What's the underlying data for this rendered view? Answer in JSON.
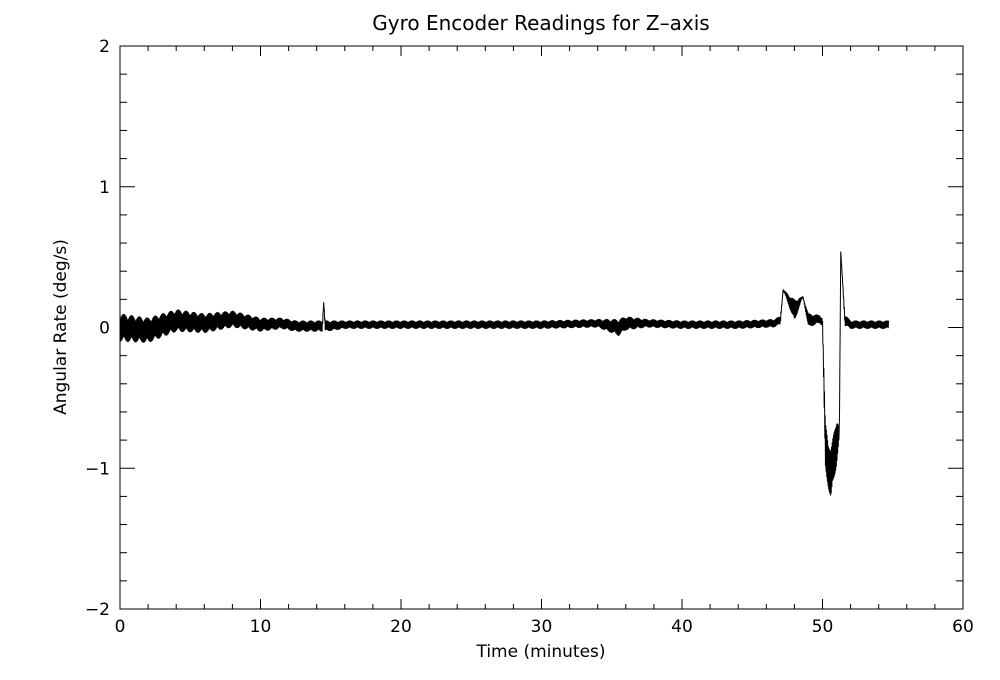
{
  "chart_data": {
    "type": "line",
    "title": "Gyro Encoder Readings for Z–axis",
    "xlabel": "Time (minutes)",
    "ylabel": "Angular Rate (deg/s)",
    "xlim": [
      0,
      60
    ],
    "ylim": [
      -2,
      2
    ],
    "xticks": [
      0,
      10,
      20,
      30,
      40,
      50,
      60
    ],
    "xtick_labels": [
      "0",
      "10",
      "20",
      "30",
      "40",
      "50",
      "60"
    ],
    "yticks": [
      -2,
      -1,
      0,
      1,
      2
    ],
    "ytick_labels": [
      "−2",
      "−1",
      "0",
      "1",
      "2"
    ],
    "grid": false,
    "line_color": "#000000",
    "series": [
      {
        "x": [
          0.0,
          2.0,
          4.0,
          6.0,
          8.0,
          10.0,
          11.5,
          12.5,
          14.4,
          14.5,
          14.6,
          16.0,
          20.0,
          25.0,
          30.0,
          34.0,
          35.5,
          36.0,
          37.5,
          40.0,
          44.0,
          46.5,
          47.0,
          47.2,
          48.0,
          48.6,
          49.0,
          49.8,
          50.0,
          50.2,
          50.6,
          51.0,
          51.2,
          51.3,
          51.6,
          52.0,
          54.0,
          54.7
        ],
        "y": [
          0.0,
          -0.02,
          0.05,
          0.03,
          0.06,
          0.02,
          0.03,
          0.01,
          0.01,
          0.18,
          0.01,
          0.02,
          0.02,
          0.02,
          0.02,
          0.03,
          0.0,
          0.03,
          0.03,
          0.02,
          0.02,
          0.03,
          0.05,
          0.27,
          0.12,
          0.22,
          0.05,
          0.06,
          0.04,
          -0.85,
          -1.05,
          -0.8,
          -0.75,
          0.54,
          0.05,
          0.02,
          0.02,
          0.02
        ],
        "noise_amplitude": [
          0.1,
          0.09,
          0.08,
          0.07,
          0.06,
          0.05,
          0.04,
          0.04,
          0.04,
          0.0,
          0.04,
          0.03,
          0.03,
          0.03,
          0.03,
          0.03,
          0.06,
          0.05,
          0.03,
          0.03,
          0.03,
          0.03,
          0.03,
          0.0,
          0.08,
          0.0,
          0.05,
          0.03,
          0.03,
          0.18,
          0.18,
          0.18,
          0.03,
          0.0,
          0.04,
          0.03,
          0.03,
          0.03
        ]
      }
    ]
  }
}
